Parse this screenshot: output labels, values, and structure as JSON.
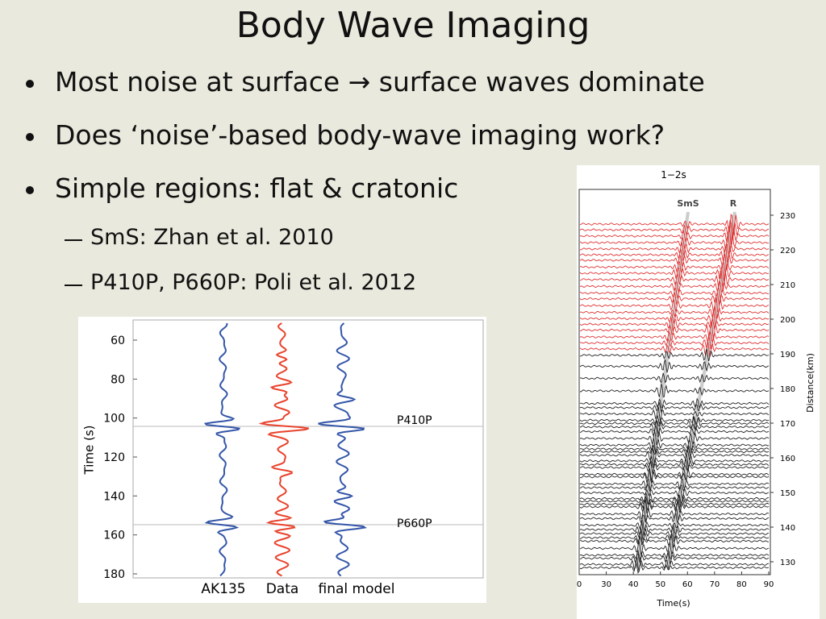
{
  "slide": {
    "title": "Body Wave Imaging",
    "bullets": [
      "Most noise at surface → surface waves dominate",
      "Does ‘noise’-based body-wave imaging work?",
      "Simple regions: flat & cratonic"
    ],
    "sub_bullets": [
      "SmS: Zhan et al. 2010",
      "P410P, P660P: Poli et al. 2012"
    ],
    "left_figure": {
      "y_label": "Time (s)",
      "yticks": [
        60,
        80,
        100,
        120,
        140,
        160,
        180
      ],
      "phase_labels": [
        "P410P",
        "P660P"
      ],
      "trace_labels": [
        "AK135",
        "Data",
        "final model"
      ]
    },
    "right_figure": {
      "title": "1−2s",
      "phase_labels": [
        "SmS",
        "R"
      ],
      "y_label": "Distance(km)",
      "yticks": [
        230,
        220,
        210,
        200,
        190,
        180,
        170,
        160,
        150,
        140,
        130
      ],
      "x_label": "Time(s)",
      "xticks": [
        "0",
        "30",
        "40",
        "50",
        "60",
        "70",
        "80",
        "90"
      ]
    }
  }
}
